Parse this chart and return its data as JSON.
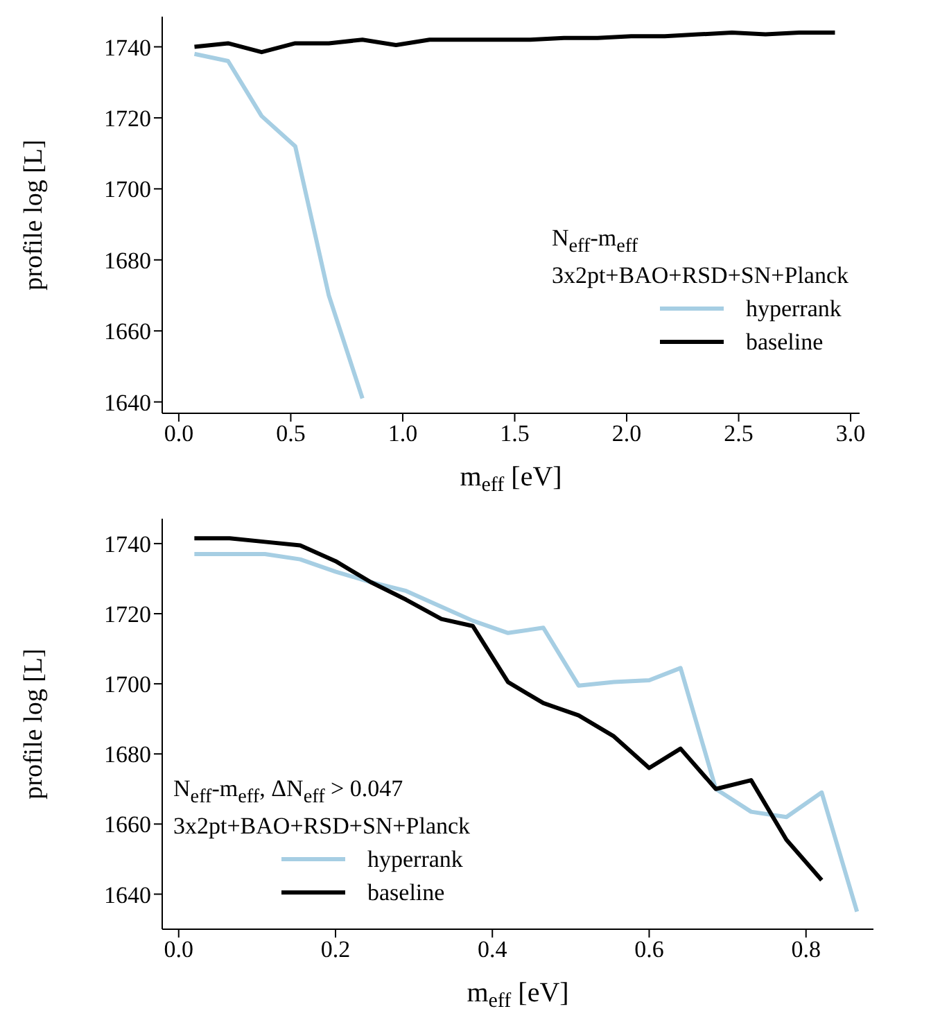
{
  "chart_data": [
    {
      "type": "line",
      "xlabel": "m$_{eff}$ [eV]",
      "ylabel": "profile log [L]",
      "legend_title": "N$_{eff}$-m$_{eff}$\n3x2pt+BAO+RSD+SN+Planck",
      "legend": "center right",
      "grid": false,
      "xlim": [
        -0.074,
        3.04
      ],
      "xticks": [
        {
          "value": 0,
          "label": "0.0"
        },
        0.5,
        {
          "value": 1,
          "label": "1.0"
        },
        1.5,
        {
          "value": 2,
          "label": "2.0"
        },
        2.5,
        {
          "value": 3,
          "label": "3.0"
        }
      ],
      "ylim": [
        1636.8,
        1748.5
      ],
      "yticks": [
        1640,
        1660,
        1680,
        1700,
        1720,
        1740
      ],
      "series": [
        {
          "name": "hyperrank",
          "color": "#a6cee3",
          "x": [
            0.07,
            0.22,
            0.37,
            0.52,
            0.67,
            0.82
          ],
          "values": [
            1738,
            1736,
            1720.5,
            1712,
            1670,
            1641
          ]
        },
        {
          "name": "baseline",
          "color": "#000000",
          "x": [
            0.07,
            0.22,
            0.37,
            0.52,
            0.67,
            0.82,
            0.97,
            1.12,
            1.27,
            1.42,
            1.57,
            1.72,
            1.87,
            2.02,
            2.17,
            2.32,
            2.47,
            2.62,
            2.77,
            2.93
          ],
          "values": [
            1740,
            1741,
            1738.5,
            1741,
            1741,
            1742,
            1740.5,
            1742,
            1742,
            1742,
            1742,
            1742.5,
            1742.5,
            1743,
            1743,
            1743.5,
            1744,
            1743.5,
            1744,
            1744
          ]
        }
      ]
    },
    {
      "type": "line",
      "xlabel": "m$_{eff}$ [eV]",
      "ylabel": "profile log [L]",
      "legend_title": "N$_{eff}$-m$_{eff}$, ΔN$_{eff}$ > 0.047\n3x2pt+BAO+RSD+SN+Planck",
      "legend": "bottom left",
      "grid": false,
      "xlim": [
        -0.021,
        0.886
      ],
      "xticks": [
        {
          "value": 0,
          "label": "0.0"
        },
        0.2,
        0.4,
        0.6,
        0.8
      ],
      "ylim": [
        1630,
        1747.1
      ],
      "yticks": [
        1640,
        1660,
        1680,
        1700,
        1720,
        1740
      ],
      "series": [
        {
          "name": "hyperrank",
          "color": "#a6cee3",
          "x": [
            0.02,
            0.065,
            0.11,
            0.155,
            0.2,
            0.245,
            0.29,
            0.335,
            0.375,
            0.42,
            0.465,
            0.51,
            0.555,
            0.6,
            0.64,
            0.685,
            0.73,
            0.775,
            0.82,
            0.865
          ],
          "values": [
            1737,
            1737,
            1737,
            1735.5,
            1732,
            1729,
            1726.5,
            1722,
            1718,
            1714.5,
            1716,
            1699.5,
            1700.5,
            1701,
            1704.5,
            1670,
            1663.5,
            1662,
            1669,
            1635
          ]
        },
        {
          "name": "baseline",
          "color": "#000000",
          "x": [
            0.02,
            0.065,
            0.11,
            0.155,
            0.2,
            0.245,
            0.29,
            0.335,
            0.375,
            0.42,
            0.465,
            0.51,
            0.555,
            0.6,
            0.64,
            0.685,
            0.73,
            0.775,
            0.82
          ],
          "values": [
            1741.5,
            1741.5,
            1740.5,
            1739.5,
            1735,
            1729,
            1724,
            1718.5,
            1716.5,
            1700.5,
            1694.5,
            1691,
            1685,
            1676,
            1681.5,
            1670,
            1672.5,
            1655.5,
            1644
          ]
        }
      ]
    }
  ]
}
